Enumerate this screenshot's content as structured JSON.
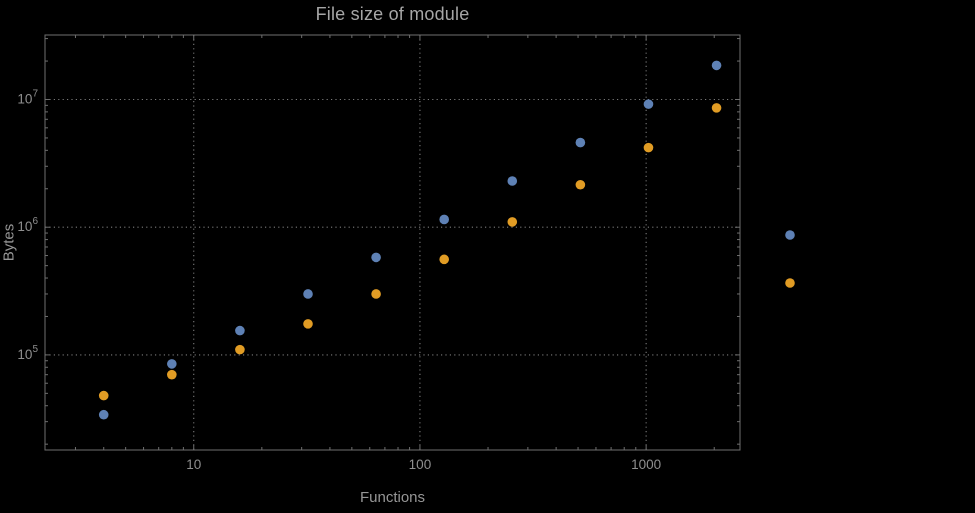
{
  "chart_data": {
    "type": "scatter",
    "title": "File size of module",
    "xlabel": "Functions",
    "ylabel": "Bytes",
    "x_scale": "log",
    "y_scale": "log",
    "x": [
      4,
      8,
      16,
      32,
      64,
      128,
      256,
      512,
      1024,
      2048
    ],
    "series": [
      {
        "name": "series-1",
        "color": "#5E81B5",
        "values": [
          34000,
          85000,
          155000,
          300000,
          580000,
          1150000,
          2300000,
          4600000,
          9200000,
          18500000
        ]
      },
      {
        "name": "series-2",
        "color": "#E19C24",
        "values": [
          48000,
          70000,
          110000,
          175000,
          300000,
          560000,
          1100000,
          2150000,
          4200000,
          8600000
        ]
      }
    ],
    "xlim": [
      2.2,
      2600
    ],
    "ylim": [
      18000,
      32000000
    ],
    "x_ticks": [
      {
        "value": 10,
        "label": "10"
      },
      {
        "value": 100,
        "label": "100"
      },
      {
        "value": 1000,
        "label": "1000"
      }
    ],
    "y_ticks": [
      {
        "value": 100000,
        "mantissa": "10",
        "exponent": "5"
      },
      {
        "value": 1000000,
        "mantissa": "10",
        "exponent": "6"
      },
      {
        "value": 10000000,
        "mantissa": "10",
        "exponent": "7"
      }
    ],
    "grid": "dotted",
    "legend": {
      "position": "right-of-frame",
      "items": [
        {
          "color": "#5E81B5",
          "label": ""
        },
        {
          "color": "#E19C24",
          "label": ""
        }
      ]
    }
  },
  "style": {
    "background": "#000000",
    "frame_color": "#6f6f6f",
    "grid_color": "#7a7a7a",
    "title_color": "#a6a6a6",
    "label_color": "#969696",
    "tick_label_color": "#8f8f8f"
  }
}
